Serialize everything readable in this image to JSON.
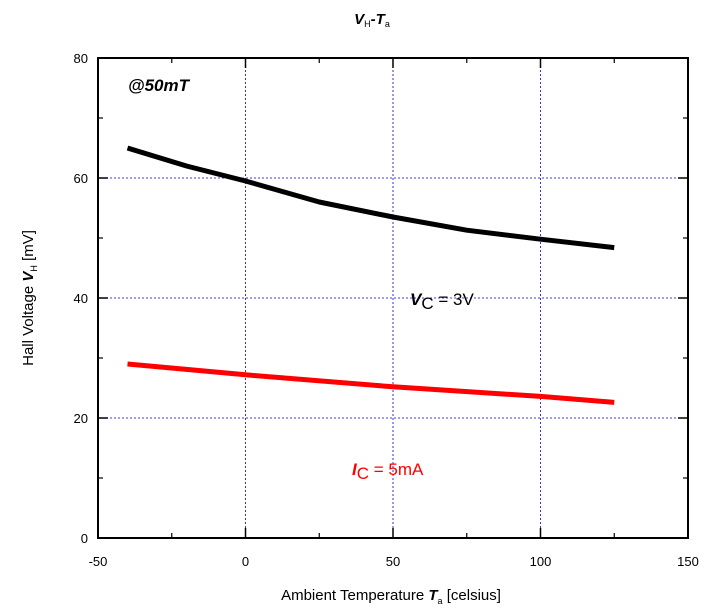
{
  "chart_data": {
    "type": "line",
    "title": {
      "v": "V",
      "v_sub": "H",
      "sep": "-",
      "t": "T",
      "t_sub": "a"
    },
    "xlabel": {
      "prefix": "Ambient Temperature ",
      "sym": "T",
      "sub": "a",
      "suffix": " [celsius]"
    },
    "ylabel": {
      "prefix": "Hall Voltage ",
      "sym": "V",
      "sub": "H",
      "suffix": " [mV]"
    },
    "xlim": [
      -50,
      150
    ],
    "ylim": [
      0,
      80
    ],
    "x_ticks": [
      -50,
      0,
      50,
      100,
      150
    ],
    "y_ticks": [
      0,
      20,
      40,
      60,
      80
    ],
    "grid": true,
    "series": [
      {
        "color": "#000000",
        "points": [
          [
            -40,
            65
          ],
          [
            -20,
            62
          ],
          [
            0,
            59.5
          ],
          [
            25,
            56
          ],
          [
            50,
            53.5
          ],
          [
            75,
            51.3
          ],
          [
            100,
            49.8
          ],
          [
            125,
            48.4
          ]
        ]
      },
      {
        "color": "#ff0000",
        "points": [
          [
            -40,
            29
          ],
          [
            0,
            27.2
          ],
          [
            50,
            25.2
          ],
          [
            100,
            23.6
          ],
          [
            125,
            22.6
          ]
        ]
      }
    ],
    "annotations": {
      "condition": "@50mT",
      "vc": {
        "sym": "V",
        "sub": "C",
        "text": " = 3V"
      },
      "ic": {
        "sym": "I",
        "sub": "C",
        "text": " = 5mA"
      }
    }
  }
}
